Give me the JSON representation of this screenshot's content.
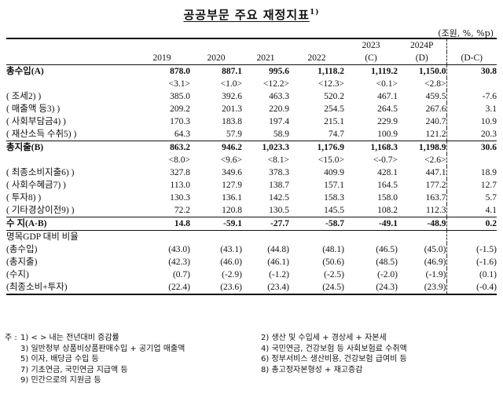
{
  "title": "공공부문 주요 재정지표",
  "title_sup": "1)",
  "unit": "(조원, %, %p)",
  "columns": [
    {
      "top": "",
      "bottom": "2019"
    },
    {
      "top": "",
      "bottom": "2020"
    },
    {
      "top": "",
      "bottom": "2021"
    },
    {
      "top": "",
      "bottom": "2022"
    },
    {
      "top": "2023",
      "bottom": "(C)"
    },
    {
      "top": "2024P",
      "bottom": "(D)"
    },
    {
      "top": "",
      "bottom": "(D-C)"
    }
  ],
  "rows": [
    {
      "label": "총수입(A)",
      "v": [
        "878.0",
        "887.1",
        "995.6",
        "1,118.2",
        "1,119.2",
        "1,150.0",
        "30.8"
      ]
    },
    {
      "label": "",
      "v": [
        "<3.1>",
        "<1.0>",
        "<12.2>",
        "<12.3>",
        "<0.1>",
        "<2.8>",
        ""
      ]
    },
    {
      "label": "( 조세2) )",
      "v": [
        "385.0",
        "392.6",
        "463.3",
        "520.2",
        "467.1",
        "459.5",
        "-7.6"
      ]
    },
    {
      "label": "( 매출액 등3) )",
      "v": [
        "209.2",
        "201.3",
        "220.9",
        "254.5",
        "264.5",
        "267.6",
        "3.1"
      ]
    },
    {
      "label": "( 사회부담금4) )",
      "v": [
        "170.3",
        "183.8",
        "197.4",
        "215.1",
        "229.9",
        "240.7",
        "10.9"
      ]
    },
    {
      "label": "( 재산소득 수취5) )",
      "v": [
        "64.3",
        "57.9",
        "58.9",
        "74.7",
        "100.9",
        "121.2",
        "20.3"
      ]
    },
    {
      "label": "총지출(B)",
      "v": [
        "863.2",
        "946.2",
        "1,023.3",
        "1,176.9",
        "1,168.3",
        "1,198.9",
        "30.6"
      ]
    },
    {
      "label": "",
      "v": [
        "<8.0>",
        "<9.6>",
        "<8.1>",
        "<15.0>",
        "<-0.7>",
        "<2.6>",
        ""
      ]
    },
    {
      "label": "( 최종소비지출6) )",
      "v": [
        "327.8",
        "349.6",
        "378.3",
        "409.9",
        "428.1",
        "447.1",
        "18.9"
      ]
    },
    {
      "label": "( 사회수혜금7) )",
      "v": [
        "113.0",
        "127.9",
        "138.7",
        "157.1",
        "164.5",
        "177.2",
        "12.7"
      ]
    },
    {
      "label": "( 투자8) )",
      "v": [
        "130.3",
        "136.1",
        "142.5",
        "158.3",
        "158.0",
        "163.7",
        "5.7"
      ]
    },
    {
      "label": "( 기타경상이전9) )",
      "v": [
        "72.2",
        "120.8",
        "130.5",
        "145.5",
        "108.2",
        "112.3",
        "4.1"
      ]
    },
    {
      "label": "수 지(A-B)",
      "v": [
        "14.8",
        "-59.1",
        "-27.7",
        "-58.7",
        "-49.1",
        "-48.9",
        "0.2"
      ]
    },
    {
      "label": "명목GDP 대비 비율",
      "v": [
        "",
        "",
        "",
        "",
        "",
        "",
        ""
      ]
    },
    {
      "label": "(총수입)",
      "v": [
        "(43.0)",
        "(43.1)",
        "(44.8)",
        "(48.1)",
        "(46.5)",
        "(45.0)",
        "(-1.5)"
      ]
    },
    {
      "label": "(총지출)",
      "v": [
        "(42.3)",
        "(46.0)",
        "(46.1)",
        "(50.6)",
        "(48.5)",
        "(46.9)",
        "(-1.6)"
      ]
    },
    {
      "label": "(수지)",
      "v": [
        "(0.7)",
        "(-2.9)",
        "(-1.2)",
        "(-2.5)",
        "(-2.0)",
        "(-1.9)",
        "(0.1)"
      ]
    },
    {
      "label": "(최종소비+투자)",
      "v": [
        "(22.4)",
        "(23.6)",
        "(23.4)",
        "(24.5)",
        "(24.3)",
        "(23.9)",
        "(-0.4)"
      ]
    }
  ],
  "notes": {
    "prefix": "주 :",
    "items": [
      [
        "1) < > 내는 전년대비 증감률",
        "2) 생산 및 수입세 + 경상세 + 자본세"
      ],
      [
        "3) 일반정부 상품비상품판매수입 + 공기업 매출액",
        "4) 국민연금, 건강보험 등 사회보험료 수취액"
      ],
      [
        "5) 이자, 배당금 수입 등",
        "6) 정부서비스 생산비용, 건강보험 급여비 등"
      ],
      [
        "7) 기초연금, 국민연금 지급액 등",
        "8) 총고정자본형성 + 재고증감"
      ],
      [
        "9) 민간으로의 지원금 등",
        ""
      ]
    ]
  }
}
